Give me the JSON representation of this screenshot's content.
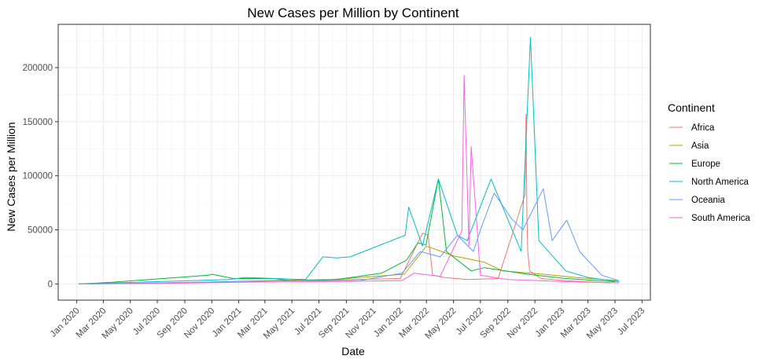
{
  "chart_data": {
    "type": "line",
    "title": "New Cases per Million by Continent",
    "xlabel": "Date",
    "ylabel": "New Cases per Million",
    "xlim": [
      "2019-11-20",
      "2023-07-20"
    ],
    "ylim": [
      -15000,
      240000
    ],
    "grid": true,
    "legend_title": "Continent",
    "legend_position": "right",
    "x_ticks": [
      "2020-01-01",
      "2020-03-01",
      "2020-05-01",
      "2020-07-01",
      "2020-09-01",
      "2020-11-01",
      "2021-01-01",
      "2021-03-01",
      "2021-05-01",
      "2021-07-01",
      "2021-09-01",
      "2021-11-01",
      "2022-01-01",
      "2022-03-01",
      "2022-05-01",
      "2022-07-01",
      "2022-09-01",
      "2022-11-01",
      "2023-01-01",
      "2023-03-01",
      "2023-05-01",
      "2023-07-01"
    ],
    "x_tick_labels": [
      "Jan 2020",
      "Mar 2020",
      "May 2020",
      "Jul 2020",
      "Sep 2020",
      "Nov 2020",
      "Jan 2021",
      "Mar 2021",
      "May 2021",
      "Jul 2021",
      "Sep 2021",
      "Nov 2021",
      "Jan 2022",
      "Mar 2022",
      "May 2022",
      "Jul 2022",
      "Sep 2022",
      "Nov 2022",
      "Jan 2023",
      "Mar 2023",
      "May 2023",
      "Jul 2023"
    ],
    "y_ticks": [
      0,
      50000,
      100000,
      150000,
      200000
    ],
    "y_tick_labels": [
      "0",
      "50000",
      "100000",
      "150000",
      "200000"
    ],
    "series": [
      {
        "name": "Africa",
        "color": "#F8766D",
        "x": [
          "2020-01-05",
          "2020-06-01",
          "2020-12-15",
          "2021-07-10",
          "2022-01-01",
          "2022-02-20",
          "2022-03-05",
          "2022-03-15",
          "2022-04-10",
          "2022-06-01",
          "2022-08-10",
          "2022-10-10",
          "2022-10-12",
          "2022-10-14",
          "2022-10-16",
          "2022-10-20",
          "2022-11-15",
          "2023-01-10",
          "2023-04-20"
        ],
        "y": [
          0,
          600,
          2000,
          3500,
          5000,
          47000,
          45000,
          8000,
          6000,
          4000,
          5000,
          83000,
          157000,
          64000,
          30000,
          12000,
          5000,
          3000,
          1000
        ]
      },
      {
        "name": "Asia",
        "color": "#B79F00",
        "x": [
          "2020-01-05",
          "2020-05-01",
          "2020-10-01",
          "2021-05-01",
          "2021-08-01",
          "2022-01-10",
          "2022-03-01",
          "2022-05-01",
          "2022-07-10",
          "2022-08-20",
          "2022-11-20",
          "2023-02-01",
          "2023-05-10"
        ],
        "y": [
          0,
          500,
          1500,
          3500,
          4000,
          9000,
          35000,
          26000,
          20000,
          12000,
          9000,
          6000,
          3000
        ]
      },
      {
        "name": "Europe",
        "color": "#00BA38",
        "x": [
          "2020-01-05",
          "2020-03-20",
          "2020-10-25",
          "2020-11-01",
          "2020-12-20",
          "2021-03-20",
          "2021-05-01",
          "2021-08-10",
          "2021-11-20",
          "2022-01-15",
          "2022-02-10",
          "2022-02-28",
          "2022-03-28",
          "2022-04-15",
          "2022-06-10",
          "2022-07-10",
          "2022-10-15",
          "2023-01-10",
          "2023-05-01"
        ],
        "y": [
          0,
          1500,
          8000,
          9000,
          5000,
          5000,
          3000,
          4000,
          10000,
          22000,
          38000,
          36000,
          97000,
          30000,
          12000,
          15000,
          9000,
          5000,
          2000
        ]
      },
      {
        "name": "North America",
        "color": "#00BFC4",
        "x": [
          "2020-01-05",
          "2020-04-01",
          "2020-12-10",
          "2021-01-15",
          "2021-06-01",
          "2021-07-10",
          "2021-08-10",
          "2021-09-10",
          "2022-01-12",
          "2022-01-20",
          "2022-02-20",
          "2022-03-28",
          "2022-05-10",
          "2022-06-01",
          "2022-07-25",
          "2022-10-01",
          "2022-10-22",
          "2022-11-10",
          "2023-01-10",
          "2023-03-01",
          "2023-05-10"
        ],
        "y": [
          0,
          1000,
          4000,
          6000,
          4000,
          25000,
          24000,
          25000,
          45000,
          71000,
          35000,
          97000,
          45000,
          40000,
          97000,
          30000,
          228000,
          40000,
          12000,
          6000,
          2000
        ]
      },
      {
        "name": "Oceania",
        "color": "#619CFF",
        "x": [
          "2020-01-05",
          "2020-07-01",
          "2021-04-01",
          "2021-10-01",
          "2022-01-05",
          "2022-02-15",
          "2022-04-01",
          "2022-05-10",
          "2022-06-15",
          "2022-07-01",
          "2022-08-01",
          "2022-09-10",
          "2022-10-05",
          "2022-11-20",
          "2022-12-10",
          "2023-01-12",
          "2023-02-10",
          "2023-04-01",
          "2023-05-10"
        ],
        "y": [
          0,
          800,
          3000,
          3000,
          10000,
          30000,
          25000,
          45000,
          30000,
          50000,
          84000,
          60000,
          50000,
          88000,
          40000,
          59000,
          30000,
          8000,
          3000
        ]
      },
      {
        "name": "South America",
        "color": "#F564E3",
        "x": [
          "2020-01-05",
          "2020-06-01",
          "2021-01-01",
          "2021-06-01",
          "2022-01-05",
          "2022-02-01",
          "2022-04-01",
          "2022-05-20",
          "2022-05-25",
          "2022-06-05",
          "2022-06-10",
          "2022-07-01",
          "2022-09-01",
          "2022-11-15",
          "2023-01-15",
          "2023-05-10"
        ],
        "y": [
          0,
          300,
          1500,
          2000,
          3000,
          10000,
          7000,
          49000,
          193000,
          35000,
          127000,
          8000,
          4000,
          3000,
          2000,
          1000
        ]
      }
    ]
  }
}
